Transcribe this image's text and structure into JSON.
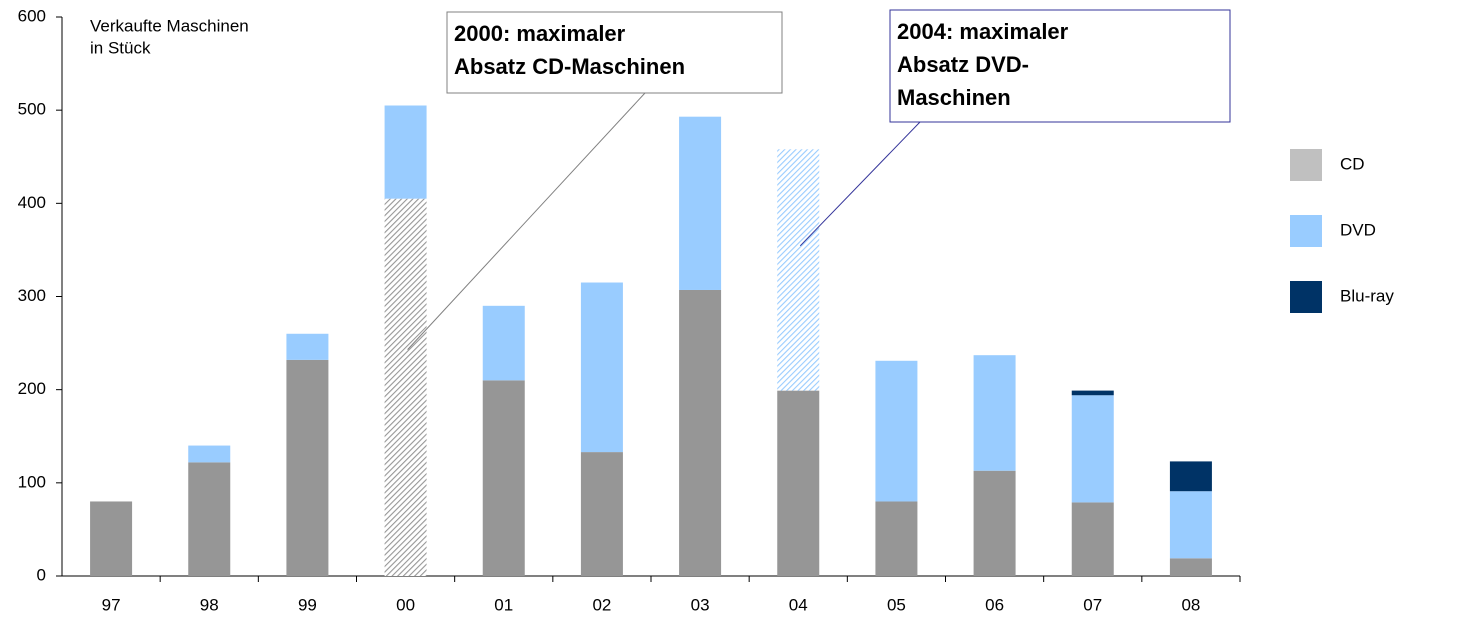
{
  "chart_data": {
    "type": "stacked_bar",
    "y_label": [
      "Verkaufte Maschinen",
      "in Stück"
    ],
    "categories": [
      "97",
      "98",
      "99",
      "00",
      "01",
      "02",
      "03",
      "04",
      "05",
      "06",
      "07",
      "08"
    ],
    "series": [
      {
        "name": "CD",
        "color": "#969696",
        "legend_color": "#c0c0c0",
        "values": [
          80,
          122,
          232,
          405,
          210,
          133,
          307,
          199,
          80,
          113,
          79,
          19
        ]
      },
      {
        "name": "DVD",
        "color": "#99ccff",
        "values": [
          0,
          18,
          28,
          100,
          80,
          182,
          186,
          259,
          151,
          124,
          115,
          72
        ]
      },
      {
        "name": "Blu-ray",
        "color": "#003366",
        "values": [
          0,
          0,
          0,
          0,
          0,
          0,
          0,
          0,
          0,
          0,
          5,
          32
        ]
      }
    ],
    "ylim": [
      0,
      600
    ],
    "yticks": [
      0,
      100,
      200,
      300,
      400,
      500,
      600
    ],
    "legend": "right",
    "annotations": [
      {
        "lines": [
          "2000: maximaler",
          "Absatz CD-Maschinen"
        ],
        "category": "00",
        "series": "CD",
        "color": "#808080"
      },
      {
        "lines": [
          "2004: maximaler",
          "Absatz DVD-",
          "Maschinen"
        ],
        "category": "04",
        "series": "DVD",
        "color": "#333399"
      }
    ]
  }
}
